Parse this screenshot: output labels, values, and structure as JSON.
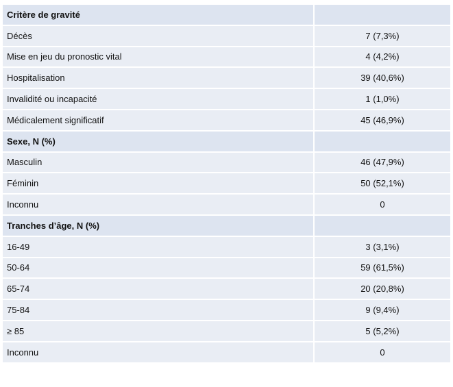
{
  "table": {
    "sections": [
      {
        "title": "Critère de gravité",
        "rows": [
          [
            "Décès",
            "7 (7,3%)"
          ],
          [
            "Mise en jeu du pronostic vital",
            "4 (4,2%)"
          ],
          [
            "Hospitalisation",
            "39 (40,6%)"
          ],
          [
            "Invalidité ou incapacité",
            "1 (1,0%)"
          ],
          [
            "Médicalement significatif",
            "45 (46,9%)"
          ]
        ]
      },
      {
        "title": "Sexe, N (%)",
        "rows": [
          [
            "Masculin",
            "46 (47,9%)"
          ],
          [
            "Féminin",
            "50 (52,1%)"
          ],
          [
            "Inconnu",
            "0"
          ]
        ]
      },
      {
        "title": "Tranches d’âge, N (%)",
        "rows": [
          [
            "16-49",
            "3 (3,1%)"
          ],
          [
            "50-64",
            "59 (61,5%)"
          ],
          [
            "65-74",
            "20 (20,8%)"
          ],
          [
            "75-84",
            "9 (9,4%)"
          ],
          [
            "≥ 85",
            "5 (5,2%)"
          ],
          [
            "Inconnu",
            "0"
          ]
        ]
      }
    ]
  }
}
